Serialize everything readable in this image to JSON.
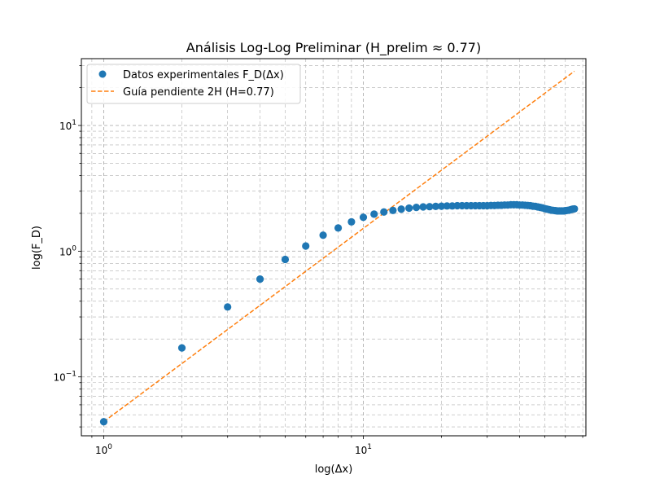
{
  "chart_data": {
    "type": "scatter",
    "title": "Análisis Log-Log Preliminar (H_prelim ≈ 0.77)",
    "xlabel": "log(Δx)",
    "ylabel": "log(F_D)",
    "xscale": "log",
    "yscale": "log",
    "xlim": [
      0.82,
      72
    ],
    "ylim": [
      0.034,
      34
    ],
    "grid": "both major and minor, dashed",
    "legend_position": "top-left",
    "x_ticks": [
      {
        "base": "10",
        "exp": "0"
      },
      {
        "base": "10",
        "exp": "1"
      }
    ],
    "y_ticks": [
      {
        "base": "10",
        "exp": "−1"
      },
      {
        "base": "10",
        "exp": "0"
      },
      {
        "base": "10",
        "exp": "1"
      }
    ],
    "series": [
      {
        "name": "Datos experimentales F_D(Δx)",
        "kind": "markers",
        "color": "#1f77b4",
        "x": [
          1,
          2,
          3,
          4,
          5,
          6,
          7,
          8,
          9,
          10,
          11,
          12,
          13,
          14,
          15,
          16,
          17,
          18,
          19,
          20,
          21,
          22,
          23,
          24,
          25,
          26,
          27,
          28,
          29,
          30,
          31,
          32,
          33,
          34,
          35,
          36,
          37,
          38,
          39,
          40,
          41,
          42,
          43,
          44,
          45,
          46,
          47,
          48,
          49,
          50,
          51,
          52,
          53,
          54,
          55,
          56,
          57,
          58,
          59,
          60,
          61,
          62,
          63,
          64,
          65
        ],
        "y": [
          0.044,
          0.17,
          0.36,
          0.6,
          0.86,
          1.1,
          1.34,
          1.53,
          1.71,
          1.86,
          1.97,
          2.05,
          2.11,
          2.16,
          2.2,
          2.23,
          2.25,
          2.26,
          2.27,
          2.28,
          2.29,
          2.29,
          2.3,
          2.3,
          2.3,
          2.3,
          2.3,
          2.3,
          2.3,
          2.3,
          2.31,
          2.31,
          2.32,
          2.32,
          2.33,
          2.33,
          2.34,
          2.34,
          2.34,
          2.33,
          2.33,
          2.32,
          2.31,
          2.3,
          2.28,
          2.27,
          2.25,
          2.23,
          2.21,
          2.18,
          2.16,
          2.14,
          2.12,
          2.11,
          2.1,
          2.09,
          2.09,
          2.09,
          2.09,
          2.1,
          2.11,
          2.12,
          2.14,
          2.16,
          2.17
        ]
      },
      {
        "name": "Guía pendiente 2H (H=0.77)",
        "kind": "dashed-line",
        "color": "#ff7f0e",
        "x": [
          1,
          65
        ],
        "y": [
          0.044,
          27
        ]
      }
    ]
  }
}
